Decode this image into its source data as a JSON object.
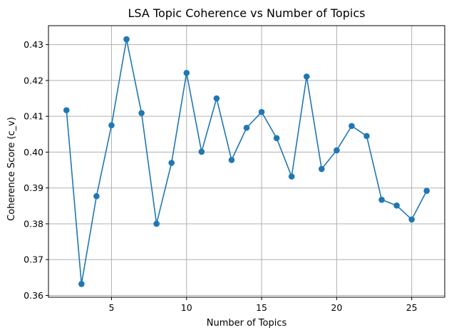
{
  "chart_data": {
    "type": "line",
    "title": "LSA Topic Coherence vs Number of Topics",
    "xlabel": "Number of Topics",
    "ylabel": "Coherence Score (c_v)",
    "xlim": [
      0.8,
      27.2
    ],
    "ylim": [
      0.3595,
      0.4353
    ],
    "x_ticks": [
      5,
      10,
      15,
      20,
      25
    ],
    "y_ticks": [
      0.36,
      0.37,
      0.38,
      0.39,
      0.4,
      0.41,
      0.42,
      0.43
    ],
    "y_tick_labels": [
      "0.36",
      "0.37",
      "0.38",
      "0.39",
      "0.40",
      "0.41",
      "0.42",
      "0.43"
    ],
    "grid": true,
    "marker": "circle",
    "series": [
      {
        "color": "#1f77b4",
        "x": [
          2,
          3,
          4,
          5,
          6,
          7,
          8,
          9,
          10,
          11,
          12,
          13,
          14,
          15,
          16,
          17,
          18,
          19,
          20,
          21,
          22,
          23,
          24,
          25,
          26
        ],
        "values": [
          0.4117,
          0.3632,
          0.3877,
          0.4075,
          0.4315,
          0.4109,
          0.38,
          0.397,
          0.4221,
          0.4001,
          0.415,
          0.3978,
          0.4068,
          0.4112,
          0.4039,
          0.3932,
          0.4211,
          0.3953,
          0.4005,
          0.4073,
          0.4045,
          0.3867,
          0.3851,
          0.3812,
          0.3892
        ]
      }
    ]
  }
}
